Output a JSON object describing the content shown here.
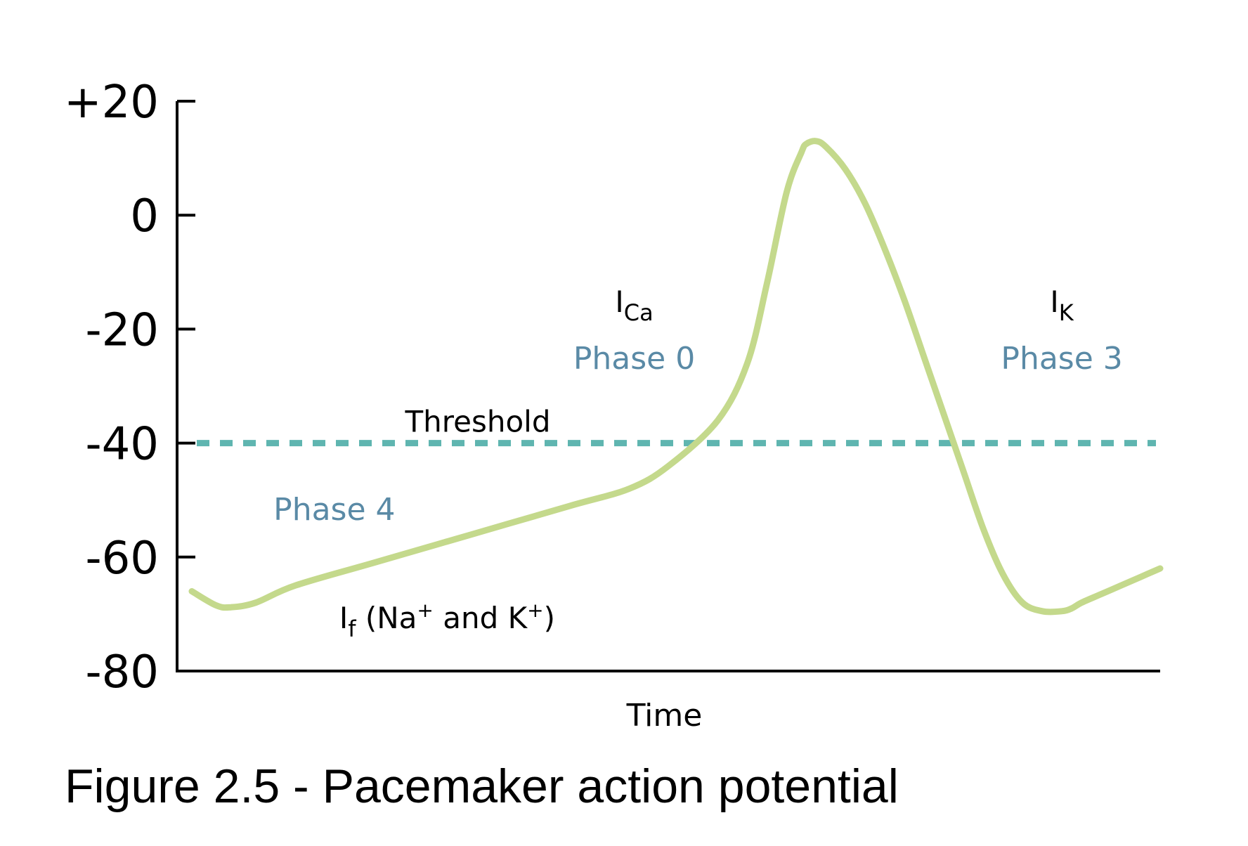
{
  "caption": "Figure 2.5 - Pacemaker action potential",
  "colors": {
    "trace": "#c4d98c",
    "threshold": "#5fb5b0",
    "phase_text": "#5a8aa6",
    "axis": "#000000"
  },
  "chart_data": {
    "type": "line",
    "title": "",
    "xlabel": "Time",
    "ylabel": "",
    "ylim": [
      -80,
      20
    ],
    "xlim": [
      0,
      100
    ],
    "yticks": [
      20,
      0,
      -20,
      -40,
      -60,
      -80
    ],
    "ytick_labels": [
      "+20",
      "0",
      "-20",
      "-40",
      "-60",
      "-80"
    ],
    "grid": false,
    "threshold": {
      "label": "Threshold",
      "y": -40
    },
    "series": [
      {
        "x": [
          1.5,
          4,
          5.5,
          8,
          12,
          20,
          30,
          40,
          46,
          50,
          55,
          58,
          60,
          62,
          63.5,
          64,
          65,
          66,
          68,
          70,
          72,
          74,
          76,
          78,
          80,
          82,
          84,
          86,
          88,
          90,
          91,
          92,
          94,
          96,
          98,
          100
        ],
        "y": [
          -66,
          -68.5,
          -68.8,
          -68,
          -65,
          -61,
          -56,
          -51,
          -48,
          -44,
          -36,
          -26,
          -12,
          4,
          11,
          12.5,
          13,
          12,
          8,
          2,
          -6,
          -15,
          -25,
          -35,
          -45,
          -55,
          -63,
          -68,
          -69.5,
          -69.5,
          -69,
          -68,
          -66.5,
          -65,
          -63.5,
          -62
        ]
      }
    ],
    "annotations": [
      {
        "text": "I",
        "sub": "Ca",
        "x": 46.5,
        "y": -17
      },
      {
        "text": "Phase 0",
        "x": 46.5,
        "y": -27,
        "style": "phase"
      },
      {
        "text": "I",
        "sub": "K",
        "x": 90,
        "y": -17
      },
      {
        "text": "Phase 3",
        "x": 90,
        "y": -27,
        "style": "phase"
      },
      {
        "text": "Phase 4",
        "x": 16,
        "y": -53.5,
        "style": "phase"
      },
      {
        "text": "I",
        "sub": "f",
        "rest": " (Na",
        "sup1": "+",
        "mid": " and K",
        "sup2": "+",
        "end": ")",
        "x": 16.5,
        "y": -72.5
      }
    ]
  }
}
